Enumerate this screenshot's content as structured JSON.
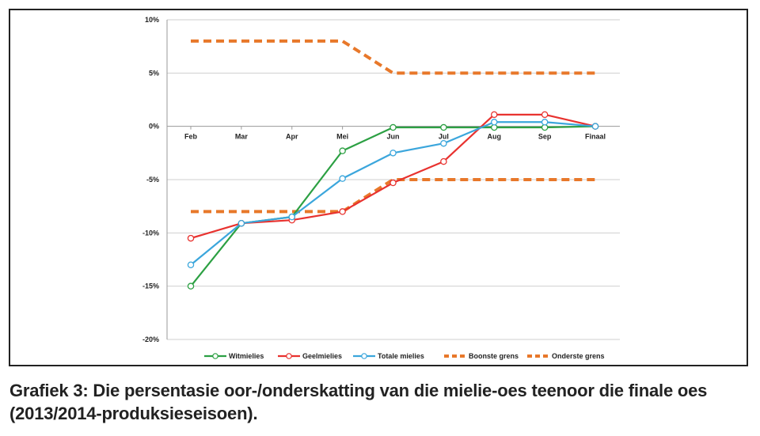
{
  "caption": "Grafiek 3: Die persentasie oor-/onderskatting van die mielie-oes teenoor die finale oes (2013/2014-produksieseisoen).",
  "chart_data": {
    "type": "line",
    "title": "",
    "xlabel": "",
    "ylabel": "",
    "categories": [
      "Feb",
      "Mar",
      "Apr",
      "Mei",
      "Jun",
      "Jul",
      "Aug",
      "Sep",
      "Finaal"
    ],
    "ylim": [
      -20,
      10
    ],
    "yticks": [
      10,
      5,
      0,
      -5,
      -10,
      -15,
      -20
    ],
    "ytick_labels": [
      "10%",
      "5%",
      "0%",
      "-5%",
      "-10%",
      "-15%",
      "-20%"
    ],
    "grid": "horizontal",
    "legend_position": "bottom",
    "series": [
      {
        "name": "Witmielies",
        "color": "#2ca043",
        "style": "solid",
        "markers": true,
        "values": [
          -15.0,
          -9.1,
          -8.5,
          -2.3,
          -0.1,
          -0.1,
          -0.1,
          -0.1,
          0
        ]
      },
      {
        "name": "Geelmielies",
        "color": "#e8322f",
        "style": "solid",
        "markers": true,
        "values": [
          -10.5,
          -9.1,
          -8.8,
          -8.0,
          -5.3,
          -3.3,
          1.1,
          1.1,
          0
        ]
      },
      {
        "name": "Totale mielies",
        "color": "#3ba6dc",
        "style": "solid",
        "markers": true,
        "values": [
          -13.0,
          -9.1,
          -8.5,
          -4.9,
          -2.5,
          -1.6,
          0.4,
          0.4,
          0
        ]
      },
      {
        "name": "Boonste grens",
        "color": "#e8782a",
        "style": "dashed",
        "markers": false,
        "values": [
          8,
          8,
          8,
          8,
          5,
          5,
          5,
          5,
          5
        ]
      },
      {
        "name": "Onderste grens",
        "color": "#e8782a",
        "style": "dashed",
        "markers": false,
        "values": [
          -8,
          -8,
          -8,
          -8,
          -5,
          -5,
          -5,
          -5,
          -5
        ]
      }
    ]
  }
}
